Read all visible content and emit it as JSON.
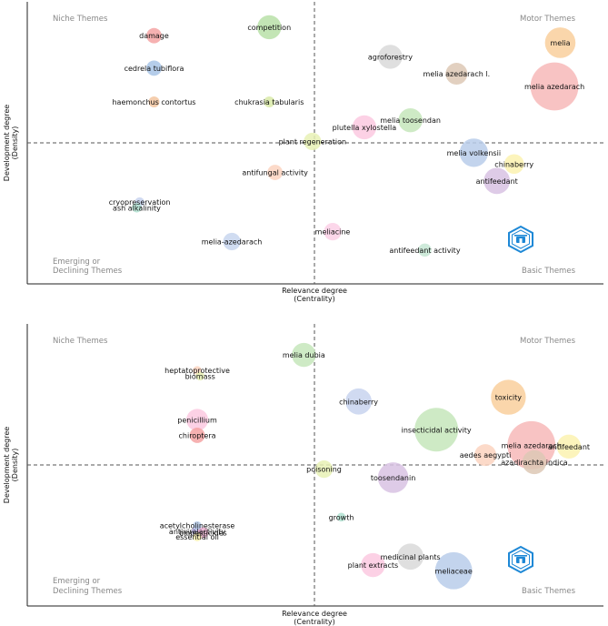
{
  "chart_data": [
    {
      "type": "scatter",
      "subtype": "thematic-map",
      "title": "",
      "xlabel": "Relevance degree",
      "xlabel2": "(Centrality)",
      "ylabel": "Development degree",
      "ylabel2": "(Density)",
      "quadrants": {
        "top_left": "Niche Themes",
        "top_right": "Motor Themes",
        "bottom_left_1": "Emerging or",
        "bottom_left_2": "Declining Themes",
        "bottom_right": "Basic Themes"
      },
      "xlim": [
        0,
        100
      ],
      "ylim": [
        0,
        100
      ],
      "x_split": 50,
      "y_split": 50,
      "bubbles": [
        {
          "label": "damage",
          "x": 22,
          "y": 88,
          "size": 2.5,
          "color": "#f4a3a3"
        },
        {
          "label": "competition",
          "x": 42,
          "y": 91,
          "size": 4.5,
          "color": "#b8e0a8"
        },
        {
          "label": "cedrela tubiflora",
          "x": 22,
          "y": 76.5,
          "size": 2.5,
          "color": "#a8c4e6"
        },
        {
          "label": "haemonchus contortus",
          "x": 22,
          "y": 64.5,
          "size": 1.5,
          "color": "#f3c6a0"
        },
        {
          "label": "chukrasia tabularis",
          "x": 42,
          "y": 64.5,
          "size": 1.5,
          "color": "#d9eaa8"
        },
        {
          "label": "agroforestry",
          "x": 63,
          "y": 80.5,
          "size": 4.5,
          "color": "#d9d9d9"
        },
        {
          "label": "melia",
          "x": 92.5,
          "y": 85.5,
          "size": 6,
          "color": "#f9cf9c"
        },
        {
          "label": "melia azedarach l.",
          "x": 74.5,
          "y": 74.5,
          "size": 4,
          "color": "#ddc8b5"
        },
        {
          "label": "melia azedarach",
          "x": 91.5,
          "y": 70,
          "size": 10,
          "color": "#f7b8b8"
        },
        {
          "label": "melia toosendan",
          "x": 66.5,
          "y": 58,
          "size": 4.5,
          "color": "#c5e6bb"
        },
        {
          "label": "plutella xylostella",
          "x": 58.5,
          "y": 55.5,
          "size": 4.5,
          "color": "#fbc9e0"
        },
        {
          "label": "plant regeneration",
          "x": 49.5,
          "y": 50.5,
          "size": 3,
          "color": "#e8f1b5"
        },
        {
          "label": "melia volkensii",
          "x": 77.5,
          "y": 46.5,
          "size": 5.5,
          "color": "#b8cdea"
        },
        {
          "label": "chinaberry",
          "x": 84.5,
          "y": 42.5,
          "size": 3.5,
          "color": "#fbf2b0"
        },
        {
          "label": "antifungal activity",
          "x": 43,
          "y": 39.5,
          "size": 2.5,
          "color": "#fbd3bf"
        },
        {
          "label": "antifeedant",
          "x": 81.5,
          "y": 36.5,
          "size": 5,
          "color": "#d8c2e3"
        },
        {
          "label": "cryopreservation",
          "x": 19.5,
          "y": 29,
          "size": 1.2,
          "color": "#c8d4ef"
        },
        {
          "label": "ash alkalinity",
          "x": 19,
          "y": 27,
          "size": 1.2,
          "color": "#b2e2d1"
        },
        {
          "label": "meliacine",
          "x": 53,
          "y": 18.5,
          "size": 3,
          "color": "#fbd0e6"
        },
        {
          "label": "melia-azedarach",
          "x": 35.5,
          "y": 15,
          "size": 3,
          "color": "#c8d6ef"
        },
        {
          "label": "antifeedant activity",
          "x": 69,
          "y": 12,
          "size": 2,
          "color": "#c5e6d3"
        }
      ]
    },
    {
      "type": "scatter",
      "subtype": "thematic-map",
      "title": "",
      "xlabel": "Relevance degree",
      "xlabel2": "(Centrality)",
      "ylabel": "Development degree",
      "ylabel2": "(Density)",
      "quadrants": {
        "top_left": "Niche Themes",
        "top_right": "Motor Themes",
        "bottom_left_1": "Emerging or",
        "bottom_left_2": "Declining Themes",
        "bottom_right": "Basic Themes"
      },
      "xlim": [
        0,
        100
      ],
      "ylim": [
        0,
        100
      ],
      "x_split": 50,
      "y_split": 50,
      "bubbles": [
        {
          "label": "melia dubia",
          "x": 48,
          "y": 89,
          "size": 4.5,
          "color": "#c5e6bb"
        },
        {
          "label": "heptatoprotective",
          "x": 29.5,
          "y": 83.5,
          "size": 1,
          "color": "#fbd3bf"
        },
        {
          "label": "biomass",
          "x": 30,
          "y": 81.5,
          "size": 1,
          "color": "#e8f1b5"
        },
        {
          "label": "chinaberry",
          "x": 57.5,
          "y": 72.5,
          "size": 5,
          "color": "#c8d4ef"
        },
        {
          "label": "toxicity",
          "x": 83.5,
          "y": 74,
          "size": 7,
          "color": "#f9cf9c"
        },
        {
          "label": "penicillium",
          "x": 29.5,
          "y": 66,
          "size": 4,
          "color": "#fbc9e0"
        },
        {
          "label": "chiroptera",
          "x": 29.5,
          "y": 60.5,
          "size": 2.5,
          "color": "#f4a3a3"
        },
        {
          "label": "insecticidal activity",
          "x": 71,
          "y": 62.5,
          "size": 9,
          "color": "#c5e6bb"
        },
        {
          "label": "melia azedarach",
          "x": 87.5,
          "y": 57,
          "size": 10,
          "color": "#f7b8b8"
        },
        {
          "label": "antifeedant",
          "x": 94,
          "y": 56.5,
          "size": 4.5,
          "color": "#fbf2b0"
        },
        {
          "label": "aedes aegypti",
          "x": 79.5,
          "y": 53.5,
          "size": 4,
          "color": "#fbd3bf"
        },
        {
          "label": "azadirachta indica",
          "x": 88,
          "y": 51,
          "size": 4.5,
          "color": "#ddc8b5"
        },
        {
          "label": "poisoning",
          "x": 51.5,
          "y": 48.5,
          "size": 3,
          "color": "#e8f1b5"
        },
        {
          "label": "toosendanin",
          "x": 63.5,
          "y": 45.5,
          "size": 6,
          "color": "#d8c2e3"
        },
        {
          "label": "growth",
          "x": 54.5,
          "y": 31.5,
          "size": 1,
          "color": "#b2e2d1"
        },
        {
          "label": "acetylcholinesterase",
          "x": 29.5,
          "y": 28.5,
          "size": 1,
          "color": "#b8cdea"
        },
        {
          "label": "antiviralactivity",
          "x": 29.5,
          "y": 26.5,
          "size": 1.5,
          "color": "#b9b0e6"
        },
        {
          "label": "biopesticides",
          "x": 30.5,
          "y": 26,
          "size": 1.5,
          "color": "#f5b7d8"
        },
        {
          "label": "essential oil",
          "x": 29.5,
          "y": 24.5,
          "size": 1,
          "color": "#fbf2b0"
        },
        {
          "label": "medicinal plants",
          "x": 66.5,
          "y": 17.5,
          "size": 5,
          "color": "#d9d9d9"
        },
        {
          "label": "plant extracts",
          "x": 60,
          "y": 14.5,
          "size": 4.5,
          "color": "#fbc9e0"
        },
        {
          "label": "meliaceae",
          "x": 74,
          "y": 12.5,
          "size": 7.5,
          "color": "#b8cdea"
        }
      ]
    }
  ],
  "watermark_color": "#1e88d6"
}
